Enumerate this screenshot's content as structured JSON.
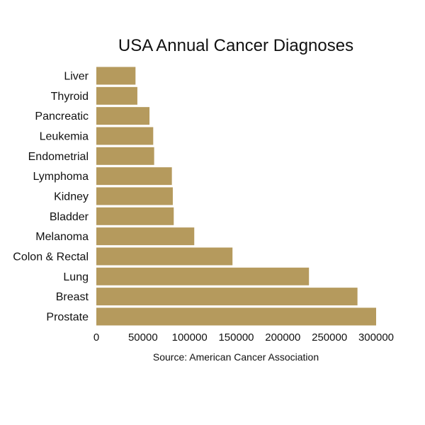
{
  "chart_data": {
    "type": "bar",
    "orientation": "horizontal",
    "title": "USA Annual Cancer Diagnoses",
    "xlabel": "Source: American Cancer Association",
    "ylabel": "",
    "categories": [
      "Liver",
      "Thyroid",
      "Pancreatic",
      "Leukemia",
      "Endometrial",
      "Lymphoma",
      "Kidney",
      "Bladder",
      "Melanoma",
      "Colon & Rectal",
      "Lung",
      "Breast",
      "Prostate"
    ],
    "values": [
      42000,
      44000,
      57000,
      61000,
      62000,
      81000,
      82000,
      83000,
      105000,
      146000,
      228000,
      280000,
      300000
    ],
    "xlim": [
      0,
      300000
    ],
    "xticks": [
      "0",
      "50000",
      "100000",
      "150000",
      "200000",
      "250000",
      "300000"
    ],
    "bar_color": "#b59a5d",
    "grid": false,
    "legend": "none"
  }
}
